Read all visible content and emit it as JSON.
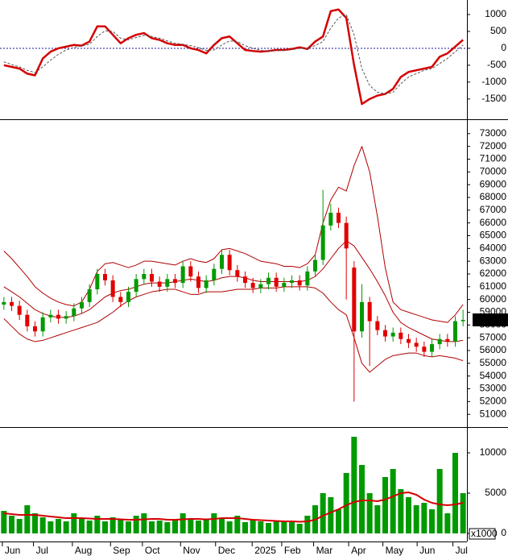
{
  "chart_data": [
    {
      "type": "line",
      "ylim": [
        -2100,
        1430
      ],
      "yticks": [
        1000,
        500,
        0,
        -500,
        -1000,
        -1500
      ],
      "reference_line": 0,
      "reference_color": "#1a1a9c",
      "series": [
        {
          "color": "#d40000",
          "width": 2.5,
          "dash": false,
          "values": [
            -500,
            -550,
            -600,
            -750,
            -800,
            -300,
            -100,
            0,
            50,
            100,
            80,
            200,
            650,
            650,
            400,
            150,
            300,
            400,
            450,
            300,
            250,
            150,
            100,
            100,
            0,
            -50,
            -150,
            100,
            300,
            350,
            150,
            -50,
            -80,
            -100,
            -80,
            -50,
            -50,
            -20,
            30,
            -20,
            200,
            350,
            1100,
            1150,
            900,
            -500,
            -1650,
            -1500,
            -1400,
            -1350,
            -1200,
            -850,
            -700,
            -650,
            -600,
            -550,
            -250,
            -150,
            50,
            250
          ]
        },
        {
          "color": "#555555",
          "width": 1,
          "dash": true,
          "values": [
            -400,
            -480,
            -550,
            -650,
            -720,
            -550,
            -350,
            -180,
            -50,
            30,
            70,
            120,
            350,
            520,
            500,
            300,
            250,
            320,
            380,
            350,
            300,
            220,
            150,
            120,
            80,
            20,
            -60,
            -50,
            100,
            220,
            200,
            80,
            0,
            -60,
            -80,
            -70,
            -60,
            -40,
            0,
            0,
            80,
            200,
            600,
            900,
            1000,
            400,
            -600,
            -1100,
            -1300,
            -1350,
            -1300,
            -1050,
            -850,
            -750,
            -650,
            -600,
            -450,
            -300,
            -100,
            100
          ]
        }
      ]
    },
    {
      "type": "candlestick",
      "ylim": [
        50000,
        74000
      ],
      "yticks": [
        51000,
        52000,
        53000,
        54000,
        55000,
        56000,
        57000,
        58000,
        59000,
        60000,
        61000,
        62000,
        63000,
        64000,
        65000,
        66000,
        67000,
        68000,
        69000,
        70000,
        71000,
        72000,
        73000
      ],
      "up_color": "#009a00",
      "down_color": "#e00000",
      "last_label": "58400.00",
      "open": [
        59600,
        59800,
        59500,
        58800,
        57900,
        57500,
        58600,
        58800,
        58500,
        58700,
        59300,
        59800,
        60800,
        62000,
        61500,
        60200,
        59800,
        60600,
        61600,
        62000,
        61400,
        61000,
        61600,
        61300,
        62600,
        61800,
        60900,
        61500,
        62400,
        63500,
        62300,
        61800,
        61300,
        60900,
        61200,
        61700,
        61000,
        61300,
        61500,
        61100,
        62200,
        63100,
        65800,
        66800,
        66000,
        62500,
        57500,
        59800,
        58300,
        57600,
        57100,
        57400,
        56900,
        56600,
        56300,
        55900,
        56500,
        56900,
        56700,
        58300
      ],
      "high": [
        60200,
        60200,
        59900,
        59200,
        58300,
        59000,
        59200,
        59200,
        59100,
        59700,
        60200,
        61200,
        62400,
        62400,
        61900,
        60600,
        61000,
        62000,
        62400,
        62400,
        61800,
        62000,
        62000,
        63000,
        63000,
        62200,
        61900,
        62800,
        63900,
        63900,
        62700,
        62200,
        61700,
        61600,
        62100,
        62100,
        61700,
        61900,
        61900,
        62600,
        63500,
        68600,
        67500,
        67200,
        66500,
        63000,
        61200,
        60200,
        58700,
        58000,
        57800,
        57800,
        57300,
        57000,
        56700,
        56900,
        57300,
        57300,
        58700,
        59200
      ],
      "low": [
        59200,
        59100,
        58400,
        57500,
        57100,
        57100,
        58200,
        58100,
        58100,
        58300,
        58900,
        59400,
        60400,
        61100,
        59800,
        59400,
        59400,
        60200,
        61200,
        61000,
        60600,
        60600,
        60900,
        60900,
        61400,
        60500,
        60500,
        61100,
        62000,
        61900,
        61400,
        60900,
        60500,
        60500,
        60800,
        60600,
        60600,
        60900,
        60700,
        60700,
        61800,
        62700,
        65400,
        65600,
        60000,
        52000,
        57000,
        54800,
        57200,
        56700,
        56700,
        56500,
        56200,
        55900,
        55500,
        55500,
        56100,
        56300,
        56300,
        57900
      ],
      "close": [
        59800,
        59500,
        58800,
        57900,
        57500,
        58600,
        58800,
        58500,
        58700,
        59300,
        59800,
        60800,
        62000,
        61500,
        60200,
        59800,
        60600,
        61600,
        62000,
        61400,
        61000,
        61600,
        61300,
        62600,
        61800,
        60900,
        61500,
        62400,
        63500,
        62300,
        61800,
        61300,
        60900,
        61200,
        61700,
        61000,
        61300,
        61500,
        61100,
        62200,
        63100,
        65800,
        66800,
        66000,
        64000,
        57500,
        59800,
        58300,
        57600,
        57100,
        57400,
        56900,
        56600,
        56300,
        55900,
        56500,
        56900,
        56700,
        58300,
        58400
      ],
      "series": [
        {
          "color": "#b00000",
          "values": [
            63800,
            63200,
            62500,
            61800,
            61000,
            60500,
            60100,
            59800,
            59600,
            59500,
            59800,
            60800,
            62200,
            62800,
            62900,
            62700,
            62500,
            62700,
            63000,
            63000,
            62900,
            62800,
            62700,
            63000,
            63200,
            63000,
            62900,
            63200,
            63900,
            64000,
            63800,
            63600,
            63300,
            63000,
            62900,
            62800,
            62600,
            62600,
            62500,
            62800,
            63500,
            66000,
            67800,
            68800,
            68500,
            70500,
            72000,
            70000,
            66500,
            62500,
            59800,
            59200,
            59000,
            58800,
            58600,
            58400,
            58300,
            58200,
            58800,
            59600
          ]
        },
        {
          "color": "#b00000",
          "values": [
            61000,
            60600,
            60200,
            59700,
            59200,
            58900,
            58700,
            58600,
            58600,
            58700,
            58900,
            59200,
            59700,
            60200,
            60500,
            60700,
            60800,
            61000,
            61200,
            61300,
            61300,
            61300,
            61400,
            61500,
            61600,
            61500,
            61400,
            61500,
            61700,
            61800,
            61800,
            61700,
            61500,
            61400,
            61400,
            61400,
            61400,
            61400,
            61400,
            61500,
            61800,
            62400,
            63200,
            64000,
            64600,
            64200,
            63300,
            62400,
            61400,
            60300,
            59000,
            58200,
            57800,
            57500,
            57200,
            56900,
            56800,
            56700,
            56700,
            56800
          ]
        },
        {
          "color": "#b00000",
          "values": [
            58500,
            57900,
            57300,
            56900,
            56700,
            56800,
            57000,
            57200,
            57400,
            57600,
            57800,
            58000,
            58200,
            58600,
            59000,
            59500,
            59900,
            60200,
            60400,
            60600,
            60700,
            60800,
            60800,
            60600,
            60400,
            60400,
            60600,
            60600,
            60600,
            60700,
            60800,
            60800,
            60800,
            60900,
            60900,
            60900,
            61000,
            61000,
            61000,
            61000,
            60900,
            60500,
            59800,
            59200,
            58800,
            57000,
            55000,
            54300,
            54800,
            55300,
            55600,
            55700,
            55800,
            55800,
            55600,
            55500,
            55600,
            55500,
            55400,
            55200
          ]
        }
      ]
    },
    {
      "type": "bar",
      "x": [
        0,
        1,
        2,
        3,
        4,
        5,
        6,
        7,
        8,
        9,
        10,
        11,
        12,
        13,
        14,
        15,
        16,
        17,
        18,
        19,
        20,
        21,
        22,
        23,
        24,
        25,
        26,
        27,
        28,
        29,
        30,
        31,
        32,
        33,
        34,
        35,
        36,
        37,
        38,
        39,
        40,
        41,
        42,
        43,
        44,
        45,
        46,
        47,
        48,
        49,
        50,
        51,
        52,
        53,
        54,
        55,
        56,
        57,
        58,
        59
      ],
      "xlim": [
        -0.5,
        59.5
      ],
      "xticks": [
        {
          "value": -0.2,
          "label": "Jun"
        },
        {
          "value": 3.8,
          "label": "Jul"
        },
        {
          "value": 8.8,
          "label": "Aug"
        },
        {
          "value": 13.7,
          "label": "Sep"
        },
        {
          "value": 17.8,
          "label": "Oct"
        },
        {
          "value": 22.7,
          "label": "Nov"
        },
        {
          "value": 27.2,
          "label": "Dec"
        },
        {
          "value": 31.9,
          "label": "2025"
        },
        {
          "value": 35.7,
          "label": "Feb"
        },
        {
          "value": 39.8,
          "label": "Mar"
        },
        {
          "value": 44.3,
          "label": "Apr"
        },
        {
          "value": 48.7,
          "label": "May"
        },
        {
          "value": 53.1,
          "label": "Jun"
        },
        {
          "value": 57.7,
          "label": "Jul"
        }
      ],
      "ylim": [
        -1000,
        13000
      ],
      "yticks": [
        10000,
        5000,
        0
      ],
      "unit_label": "x1000",
      "color": "#009a00",
      "values": [
        2800,
        2200,
        1800,
        3500,
        2500,
        2000,
        1500,
        1800,
        1500,
        2500,
        1800,
        1600,
        2200,
        1500,
        2000,
        1800,
        1500,
        2200,
        2500,
        1500,
        1600,
        1400,
        1800,
        2500,
        1700,
        1600,
        1800,
        2500,
        1800,
        1500,
        2200,
        1400,
        1700,
        1500,
        1300,
        1600,
        1500,
        1400,
        1200,
        2200,
        3500,
        5000,
        4500,
        3000,
        7500,
        12000,
        8500,
        5000,
        3500,
        7000,
        8000,
        5500,
        4500,
        3500,
        3800,
        3000,
        8000,
        2500,
        10000,
        5000
      ],
      "series": [
        {
          "color": "#d40000",
          "values": [
            2500,
            2400,
            2300,
            2300,
            2300,
            2200,
            2100,
            2000,
            1900,
            1900,
            1900,
            1850,
            1800,
            1800,
            1800,
            1750,
            1700,
            1700,
            1750,
            1800,
            1800,
            1700,
            1700,
            1750,
            1800,
            1800,
            1750,
            1800,
            1900,
            1900,
            1900,
            1800,
            1700,
            1650,
            1600,
            1550,
            1500,
            1500,
            1450,
            1500,
            1700,
            2200,
            2600,
            3000,
            3500,
            3900,
            4100,
            4100,
            4000,
            4200,
            4600,
            5000,
            5100,
            4800,
            4200,
            3800,
            3600,
            3500,
            3600,
            3800
          ]
        }
      ]
    }
  ]
}
